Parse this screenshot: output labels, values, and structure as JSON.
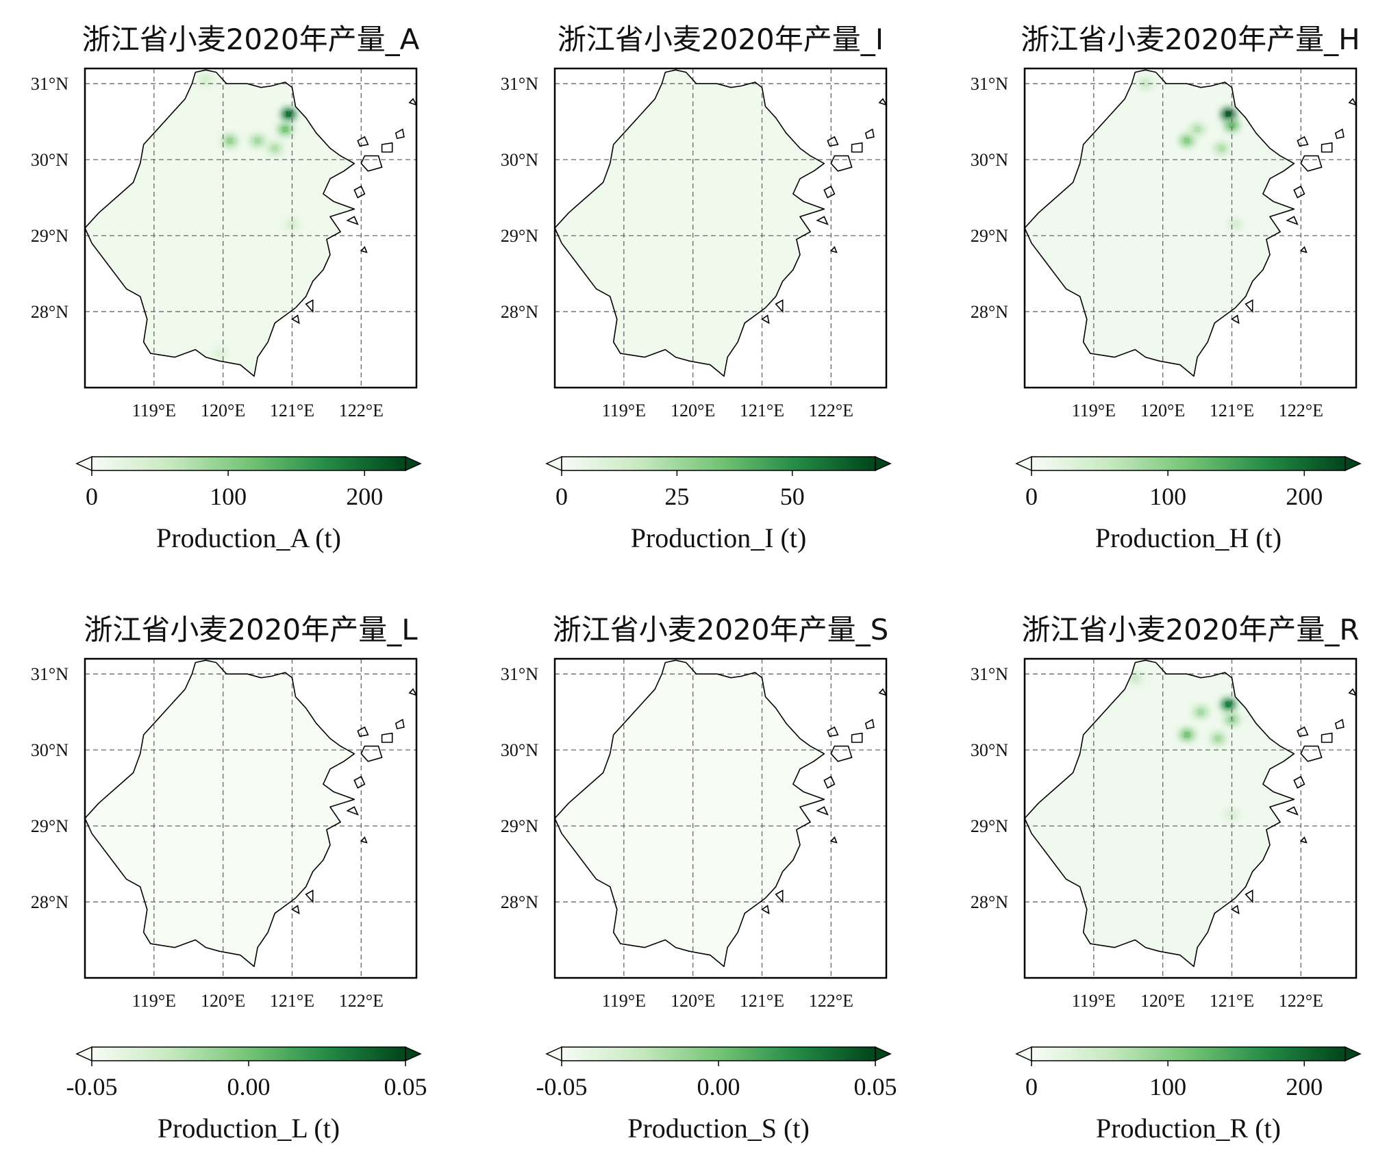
{
  "figure": {
    "lat_ticks": [
      "31°N",
      "30°N",
      "29°N",
      "28°N"
    ],
    "lon_ticks": [
      "119°E",
      "120°E",
      "121°E",
      "122°E"
    ],
    "colormap": [
      "#f7fcf5",
      "#c7e9c0",
      "#74c476",
      "#238b45",
      "#00441b"
    ]
  },
  "chart_data": [
    {
      "type": "heatmap",
      "title": "浙江省小麦2020年产量_A",
      "colorbar": {
        "label": "Production_A (t)",
        "range": [
          0,
          230
        ],
        "ticks": [
          0,
          100,
          200
        ],
        "tick_labels": [
          "0",
          "100",
          "200"
        ],
        "extend": "both"
      },
      "xlim": [
        118.0,
        122.8
      ],
      "ylim": [
        27.0,
        31.2
      ],
      "base_value": 10,
      "hotspots": [
        {
          "lon": 120.1,
          "lat": 30.25,
          "value": 90
        },
        {
          "lon": 120.5,
          "lat": 30.25,
          "value": 80
        },
        {
          "lon": 120.95,
          "lat": 30.6,
          "value": 190
        },
        {
          "lon": 120.9,
          "lat": 30.4,
          "value": 110
        },
        {
          "lon": 120.75,
          "lat": 30.15,
          "value": 70
        },
        {
          "lon": 121.0,
          "lat": 29.15,
          "value": 40
        },
        {
          "lon": 119.95,
          "lat": 27.45,
          "value": 30
        },
        {
          "lon": 119.75,
          "lat": 31.05,
          "value": 40
        }
      ]
    },
    {
      "type": "heatmap",
      "title": "浙江省小麦2020年产量_I",
      "colorbar": {
        "label": "Production_I (t)",
        "range": [
          0,
          68
        ],
        "ticks": [
          0,
          25,
          50
        ],
        "tick_labels": [
          "0",
          "25",
          "50"
        ],
        "extend": "both"
      },
      "xlim": [
        118.0,
        122.8
      ],
      "ylim": [
        27.0,
        31.2
      ],
      "base_value": 3,
      "hotspots": []
    },
    {
      "type": "heatmap",
      "title": "浙江省小麦2020年产量_H",
      "colorbar": {
        "label": "Production_H (t)",
        "range": [
          0,
          230
        ],
        "ticks": [
          0,
          100,
          200
        ],
        "tick_labels": [
          "0",
          "100",
          "200"
        ],
        "extend": "both"
      },
      "xlim": [
        118.0,
        122.8
      ],
      "ylim": [
        27.0,
        31.2
      ],
      "base_value": 8,
      "hotspots": [
        {
          "lon": 120.35,
          "lat": 30.25,
          "value": 100
        },
        {
          "lon": 120.5,
          "lat": 30.4,
          "value": 70
        },
        {
          "lon": 120.95,
          "lat": 30.6,
          "value": 210
        },
        {
          "lon": 121.0,
          "lat": 30.45,
          "value": 120
        },
        {
          "lon": 120.85,
          "lat": 30.15,
          "value": 70
        },
        {
          "lon": 121.05,
          "lat": 29.15,
          "value": 40
        },
        {
          "lon": 119.75,
          "lat": 31.0,
          "value": 50
        }
      ]
    },
    {
      "type": "heatmap",
      "title": "浙江省小麦2020年产量_L",
      "colorbar": {
        "label": "Production_L (t)",
        "range": [
          -0.05,
          0.05
        ],
        "ticks": [
          -0.05,
          0.0,
          0.05
        ],
        "tick_labels": [
          "-0.05",
          "0.00",
          "0.05"
        ],
        "extend": "both"
      },
      "xlim": [
        118.0,
        122.8
      ],
      "ylim": [
        27.0,
        31.2
      ],
      "base_value": -0.05,
      "hotspots": []
    },
    {
      "type": "heatmap",
      "title": "浙江省小麦2020年产量_S",
      "colorbar": {
        "label": "Production_S (t)",
        "range": [
          -0.05,
          0.05
        ],
        "ticks": [
          -0.05,
          0.0,
          0.05
        ],
        "tick_labels": [
          "-0.05",
          "0.00",
          "0.05"
        ],
        "extend": "both"
      },
      "xlim": [
        118.0,
        122.8
      ],
      "ylim": [
        27.0,
        31.2
      ],
      "base_value": -0.05,
      "hotspots": []
    },
    {
      "type": "heatmap",
      "title": "浙江省小麦2020年产量_R",
      "colorbar": {
        "label": "Production_R (t)",
        "range": [
          0,
          230
        ],
        "ticks": [
          0,
          100,
          200
        ],
        "tick_labels": [
          "0",
          "100",
          "200"
        ],
        "extend": "both"
      },
      "xlim": [
        118.0,
        122.8
      ],
      "ylim": [
        27.0,
        31.2
      ],
      "base_value": 9,
      "hotspots": [
        {
          "lon": 120.35,
          "lat": 30.2,
          "value": 110
        },
        {
          "lon": 120.55,
          "lat": 30.5,
          "value": 80
        },
        {
          "lon": 120.95,
          "lat": 30.6,
          "value": 180
        },
        {
          "lon": 121.0,
          "lat": 30.4,
          "value": 90
        },
        {
          "lon": 120.8,
          "lat": 30.15,
          "value": 80
        },
        {
          "lon": 119.6,
          "lat": 30.95,
          "value": 50
        },
        {
          "lon": 121.0,
          "lat": 29.15,
          "value": 35
        }
      ]
    }
  ]
}
